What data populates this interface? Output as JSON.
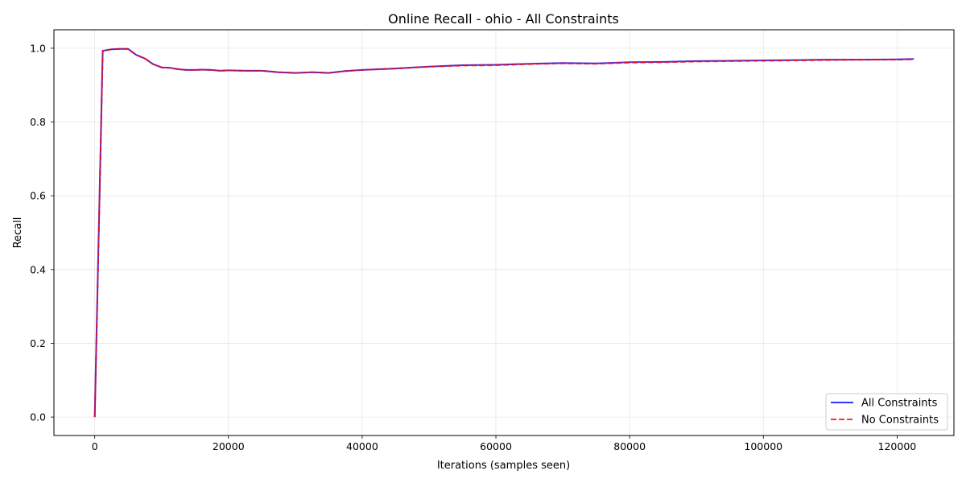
{
  "chart_data": {
    "type": "line",
    "title": "Online Recall - ohio - All Constraints",
    "xlabel": "Iterations (samples seen)",
    "ylabel": "Recall",
    "xlim": [
      -6100,
      128500
    ],
    "ylim": [
      -0.05,
      1.05
    ],
    "xticks": [
      0,
      20000,
      40000,
      60000,
      80000,
      100000,
      120000
    ],
    "yticks": [
      0.0,
      0.2,
      0.4,
      0.6,
      0.8,
      1.0
    ],
    "xtick_labels": [
      "0",
      "20000",
      "40000",
      "60000",
      "80000",
      "100000",
      "120000"
    ],
    "ytick_labels": [
      "0.0",
      "0.2",
      "0.4",
      "0.6",
      "0.8",
      "1.0"
    ],
    "grid": true,
    "legend_position": "lower-right",
    "x": [
      0,
      1200,
      2500,
      3700,
      5000,
      6200,
      7500,
      8700,
      10000,
      11200,
      12500,
      13700,
      15000,
      16200,
      17500,
      18700,
      20000,
      22500,
      25000,
      27500,
      30000,
      32500,
      35000,
      37500,
      40000,
      45000,
      50000,
      55000,
      60000,
      65000,
      70000,
      75000,
      80000,
      85000,
      90000,
      95000,
      100000,
      105000,
      110000,
      115000,
      120000,
      122500
    ],
    "series": [
      {
        "name": "All Constraints",
        "color": "#0000ff",
        "style": "solid",
        "values": [
          0.0,
          0.993,
          0.997,
          0.998,
          0.998,
          0.982,
          0.972,
          0.957,
          0.948,
          0.947,
          0.943,
          0.941,
          0.941,
          0.942,
          0.941,
          0.939,
          0.94,
          0.939,
          0.939,
          0.935,
          0.933,
          0.935,
          0.933,
          0.938,
          0.941,
          0.945,
          0.95,
          0.954,
          0.955,
          0.958,
          0.96,
          0.959,
          0.962,
          0.963,
          0.965,
          0.966,
          0.967,
          0.968,
          0.969,
          0.969,
          0.97,
          0.971
        ]
      },
      {
        "name": "No Constraints",
        "color": "#ff0000",
        "style": "dashed",
        "values": [
          0.0,
          0.993,
          0.997,
          0.998,
          0.998,
          0.982,
          0.972,
          0.957,
          0.948,
          0.947,
          0.943,
          0.941,
          0.941,
          0.942,
          0.941,
          0.939,
          0.94,
          0.939,
          0.939,
          0.935,
          0.933,
          0.935,
          0.933,
          0.938,
          0.941,
          0.945,
          0.95,
          0.953,
          0.954,
          0.957,
          0.959,
          0.958,
          0.961,
          0.962,
          0.964,
          0.965,
          0.966,
          0.967,
          0.968,
          0.969,
          0.969,
          0.97
        ]
      }
    ]
  }
}
